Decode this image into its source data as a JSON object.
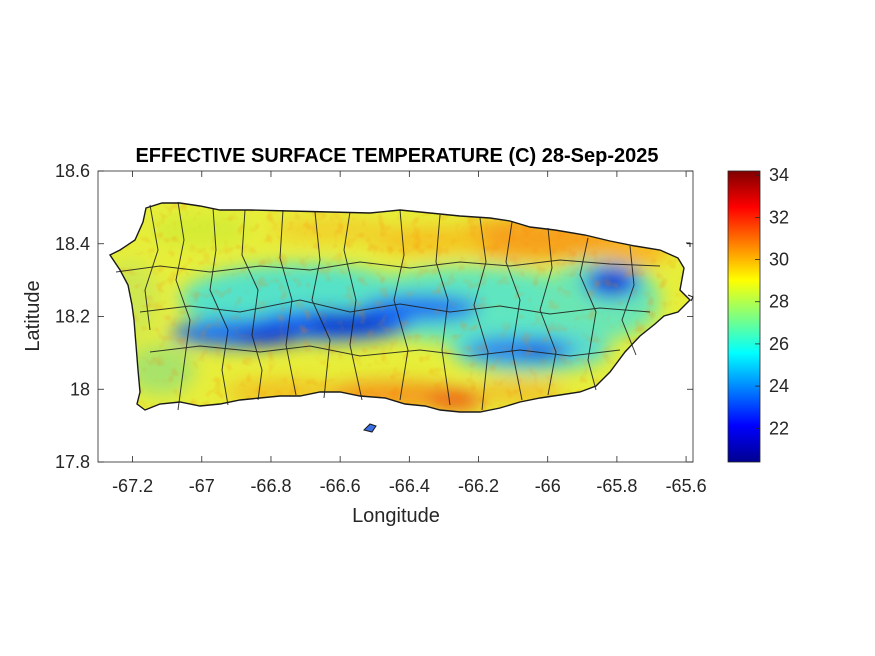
{
  "chart_data": {
    "type": "heatmap",
    "title": "EFFECTIVE SURFACE TEMPERATURE (C) 28-Sep-2025",
    "xlabel": "Longitude",
    "ylabel": "Latitude",
    "xlim": [
      -67.3,
      -65.58
    ],
    "ylim": [
      17.8,
      18.6
    ],
    "xticks": [
      -67.2,
      -67,
      -66.8,
      -66.6,
      -66.4,
      -66.2,
      -66,
      -65.8,
      -65.6
    ],
    "xtick_labels": [
      "-67.2",
      "-67",
      "-66.8",
      "-66.6",
      "-66.4",
      "-66.2",
      "-66",
      "-65.8",
      "-65.6"
    ],
    "yticks": [
      17.8,
      18,
      18.2,
      18.4,
      18.6
    ],
    "ytick_labels": [
      "17.8",
      "18",
      "18.2",
      "18.4",
      "18.6"
    ],
    "colorbar": {
      "colormap": "jet",
      "range": [
        20.4,
        34.2
      ],
      "ticks": [
        22,
        24,
        26,
        28,
        30,
        32,
        34
      ],
      "tick_labels": [
        "22",
        "24",
        "26",
        "28",
        "30",
        "32",
        "34"
      ]
    },
    "region": "Puerto Rico, municipality boundaries",
    "cool_band_lat": 18.17,
    "cool_hotspot": {
      "lon": -65.8,
      "lat": 18.29,
      "value": 21.5
    },
    "typical_coastal_value": 28
  }
}
